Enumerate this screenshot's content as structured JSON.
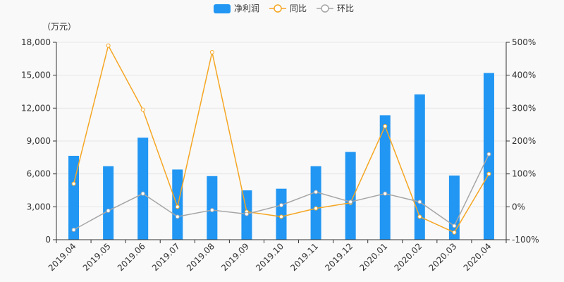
{
  "chart_data": {
    "type": "bar+line",
    "unit_label": "（万元）",
    "categories": [
      "2019.04",
      "2019.05",
      "2019.06",
      "2019.07",
      "2019.08",
      "2019.09",
      "2019.10",
      "2019.11",
      "2019.12",
      "2020.01",
      "2020.02",
      "2020.03",
      "2020.04"
    ],
    "left_axis": {
      "ylim": [
        0,
        18000
      ],
      "ticks": [
        "0",
        "3,000",
        "6,000",
        "9,000",
        "12,000",
        "15,000",
        "18,000"
      ],
      "tick_values": [
        0,
        3000,
        6000,
        9000,
        12000,
        15000,
        18000
      ]
    },
    "right_axis": {
      "ylim": [
        -100,
        500
      ],
      "ticks": [
        "-100%",
        "0%",
        "100%",
        "200%",
        "300%",
        "400%",
        "500%"
      ],
      "tick_values": [
        -100,
        0,
        100,
        200,
        300,
        400,
        500
      ]
    },
    "series": [
      {
        "name": "净利润",
        "type": "bar",
        "axis": "left",
        "color": "#2196f3",
        "values": [
          7650,
          6700,
          9300,
          6400,
          5800,
          4500,
          4650,
          6700,
          8000,
          11350,
          13250,
          5850,
          15200
        ]
      },
      {
        "name": "同比",
        "type": "line",
        "axis": "right",
        "color": "#f5a623",
        "values": [
          70,
          490,
          295,
          0,
          470,
          -15,
          -30,
          -5,
          12,
          245,
          -30,
          -78,
          100
        ]
      },
      {
        "name": "环比",
        "type": "line",
        "axis": "right",
        "color": "#a6a6a6",
        "values": [
          -70,
          -12,
          40,
          -30,
          -10,
          -22,
          5,
          45,
          15,
          40,
          15,
          -58,
          160
        ]
      }
    ],
    "legend_position": "top-center",
    "grid": true
  }
}
